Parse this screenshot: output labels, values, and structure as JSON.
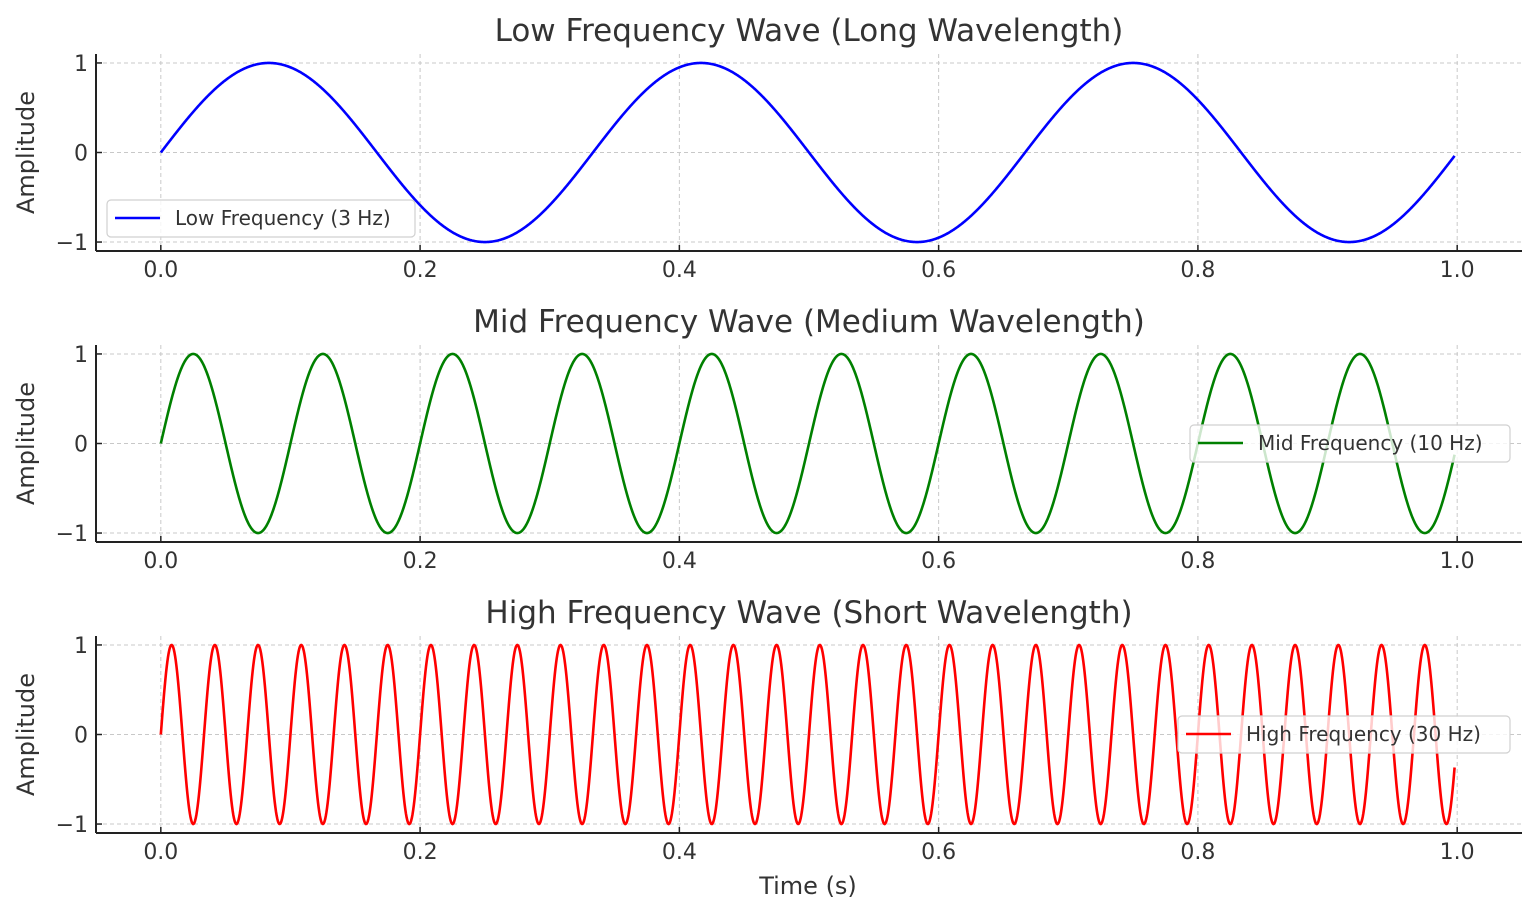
{
  "chart_data": [
    {
      "type": "line",
      "title": "Low Frequency Wave (Long Wavelength)",
      "xlabel": "",
      "ylabel": "Amplitude",
      "xlim": [
        -0.05,
        1.05
      ],
      "ylim": [
        -1.1,
        1.1
      ],
      "xticks": [
        "0.0",
        "0.2",
        "0.4",
        "0.6",
        "0.8",
        "1.0"
      ],
      "yticks": [
        "−1",
        "0",
        "1"
      ],
      "grid": true,
      "legend_position": "lower-left",
      "series": [
        {
          "name": "Low Frequency (3 Hz)",
          "function": "sin(2π·3·t)",
          "frequency_hz": 3,
          "amplitude": 1,
          "t_range": [
            0,
            0.998
          ],
          "color": "#0000ff"
        }
      ]
    },
    {
      "type": "line",
      "title": "Mid Frequency Wave (Medium Wavelength)",
      "xlabel": "",
      "ylabel": "Amplitude",
      "xlim": [
        -0.05,
        1.05
      ],
      "ylim": [
        -1.1,
        1.1
      ],
      "xticks": [
        "0.0",
        "0.2",
        "0.4",
        "0.6",
        "0.8",
        "1.0"
      ],
      "yticks": [
        "−1",
        "0",
        "1"
      ],
      "grid": true,
      "legend_position": "center-right",
      "series": [
        {
          "name": "Mid Frequency (10 Hz)",
          "function": "sin(2π·10·t)",
          "frequency_hz": 10,
          "amplitude": 1,
          "t_range": [
            0,
            0.998
          ],
          "color": "#008000"
        }
      ]
    },
    {
      "type": "line",
      "title": "High Frequency Wave (Short Wavelength)",
      "xlabel": "Time (s)",
      "ylabel": "Amplitude",
      "xlim": [
        -0.05,
        1.05
      ],
      "ylim": [
        -1.1,
        1.1
      ],
      "xticks": [
        "0.0",
        "0.2",
        "0.4",
        "0.6",
        "0.8",
        "1.0"
      ],
      "yticks": [
        "−1",
        "0",
        "1"
      ],
      "grid": true,
      "legend_position": "center-right",
      "series": [
        {
          "name": "High Frequency (30 Hz)",
          "function": "sin(2π·30·t)",
          "frequency_hz": 30,
          "amplitude": 1,
          "t_range": [
            0,
            0.998
          ],
          "color": "#ff0000"
        }
      ]
    }
  ]
}
